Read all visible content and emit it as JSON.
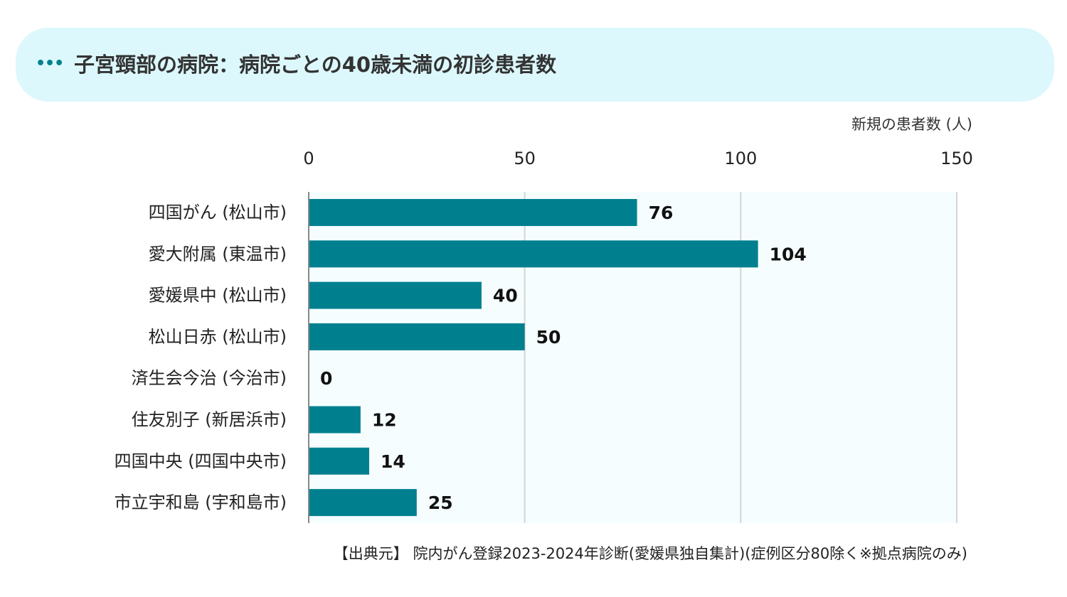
{
  "header": {
    "title": "子宮頸部の病院：病院ごとの40歳未満の初診患者数",
    "dots": "•••"
  },
  "colors": {
    "banner_bg": "#dcf8fd",
    "bar": "#00808f",
    "plot_bg": "#f5fdfe",
    "grid": "#d6d6d6",
    "axis": "#888888",
    "dots": "#00808f"
  },
  "chart_data": {
    "type": "bar",
    "orientation": "horizontal",
    "xlabel": "新規の患者数 (人)",
    "xlim": [
      0,
      150
    ],
    "xticks": [
      0,
      50,
      100,
      150
    ],
    "xtick_labels": [
      "0",
      "50",
      "100",
      "150"
    ],
    "axis_position": "top",
    "grid": true,
    "categories": [
      "四国がん (松山市)",
      "愛大附属 (東温市)",
      "愛媛県中 (松山市)",
      "松山日赤 (松山市)",
      "済生会今治 (今治市)",
      "住友別子 (新居浜市)",
      "四国中央 (四国中央市)",
      "市立宇和島 (宇和島市)"
    ],
    "values": [
      76,
      104,
      40,
      50,
      0,
      12,
      14,
      25
    ],
    "value_labels": [
      "76",
      "104",
      "40",
      "50",
      "0",
      "12",
      "14",
      "25"
    ]
  },
  "footer": {
    "source": "【出典元】 院内がん登録2023-2024年診断(愛媛県独自集計)(症例区分80除く※拠点病院のみ)"
  }
}
